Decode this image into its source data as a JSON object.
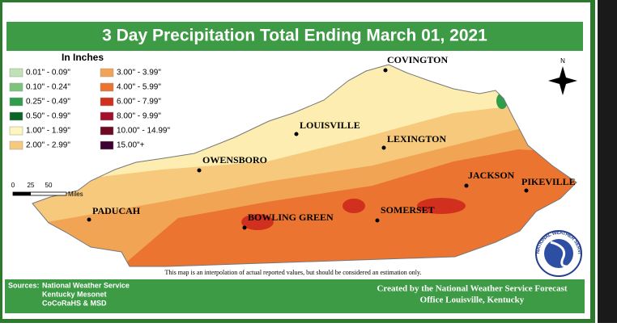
{
  "title": "3 Day Precipitation Total Ending March 01, 2021",
  "legend": {
    "title": "In Inches",
    "items": [
      {
        "label": "0.01\" - 0.09\"",
        "color": "#bfe3b4"
      },
      {
        "label": "0.10\" - 0.24\"",
        "color": "#7cc47a"
      },
      {
        "label": "0.25\" - 0.49\"",
        "color": "#2f9e4b"
      },
      {
        "label": "0.50\" - 0.99\"",
        "color": "#0a6428"
      },
      {
        "label": "1.00\" - 1.99\"",
        "color": "#fff6bd"
      },
      {
        "label": "2.00\" - 2.99\"",
        "color": "#f6c97c"
      },
      {
        "label": "3.00\" - 3.99\"",
        "color": "#f2a455"
      },
      {
        "label": "4.00\" - 5.99\"",
        "color": "#ea7430"
      },
      {
        "label": "6.00\" - 7.99\"",
        "color": "#d2301f"
      },
      {
        "label": "8.00\" - 9.99\"",
        "color": "#a3102e"
      },
      {
        "label": "10.00\" - 14.99\"",
        "color": "#6b0a22"
      },
      {
        "label": "15.00\"+",
        "color": "#3c0032"
      }
    ]
  },
  "scale": {
    "ticks": [
      "0",
      "25",
      "50"
    ],
    "unit": "Miles"
  },
  "north": "N",
  "cities": [
    "COVINGTON",
    "LOUISVILLE",
    "LEXINGTON",
    "OWENSBORO",
    "JACKSON",
    "PIKEVILLE",
    "PADUCAH",
    "BOWLING GREEN",
    "SOMERSET"
  ],
  "disclaimer": "This map is an interpolation of actual reported values, but should be considered an estimation only.",
  "sources": {
    "label": "Sources:",
    "lines": [
      "National Weather Service",
      "Kentucky Mesonet",
      "CoCoRaHS & MSD"
    ]
  },
  "credit": [
    "Created by the National Weather Service Forecast",
    "Office Louisville, Kentucky"
  ],
  "logo_text": "NATIONAL WEATHER SERVICE"
}
